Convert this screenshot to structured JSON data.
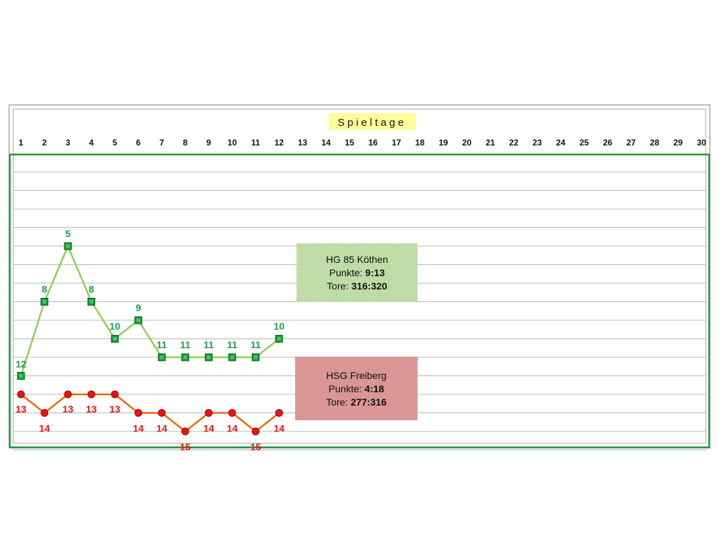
{
  "chart_data": {
    "type": "line",
    "title": "Spieltage",
    "xlabel": "",
    "ylabel": "",
    "x_categories": [
      1,
      2,
      3,
      4,
      5,
      6,
      7,
      8,
      9,
      10,
      11,
      12,
      13,
      14,
      15,
      16,
      17,
      18,
      19,
      20,
      21,
      22,
      23,
      24,
      25,
      26,
      27,
      28,
      29,
      30
    ],
    "y_axis": {
      "inverted": true,
      "ylim": [
        1,
        16
      ],
      "tick_labels_visible": false
    },
    "grid": true,
    "series": [
      {
        "name": "HG 85 Köthen",
        "color": "#92d050",
        "marker_color": "#1e9a3a",
        "label_color": "#1aa34a",
        "marker": "square",
        "x": [
          1,
          2,
          3,
          4,
          5,
          6,
          7,
          8,
          9,
          10,
          11,
          12
        ],
        "values": [
          12,
          8,
          5,
          8,
          10,
          9,
          11,
          11,
          11,
          11,
          11,
          10
        ]
      },
      {
        "name": "HSG Freiberg",
        "color": "#e46c0a",
        "marker_color": "#ee1111",
        "label_color": "#ee1111",
        "marker": "circle",
        "x": [
          1,
          2,
          3,
          4,
          5,
          6,
          7,
          8,
          9,
          10,
          11,
          12
        ],
        "values": [
          13,
          14,
          13,
          13,
          13,
          14,
          14,
          15,
          14,
          14,
          15,
          14
        ]
      }
    ]
  },
  "boxes": {
    "koethen": {
      "team": "HG 85 Köthen",
      "punkte_label": "Punkte:",
      "punkte": "9:13",
      "tore_label": "Tore:",
      "tore": "316:320",
      "color": "#b6d79a"
    },
    "freiberg": {
      "team": "HSG Freiberg",
      "punkte_label": "Punkte:",
      "punkte": "4:18",
      "tore_label": "Tore:",
      "tore": "277:316",
      "color": "#d99694"
    }
  },
  "colors": {
    "title_highlight": "#ffff99",
    "plot_border": "#1e9a3a",
    "gridline": "#b8b8b8"
  }
}
